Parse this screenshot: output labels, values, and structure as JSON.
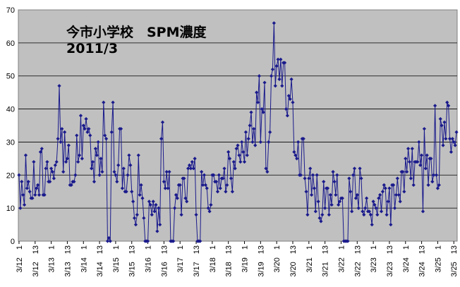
{
  "chart_data": {
    "type": "line",
    "title": "今市小学校　SPM濃度",
    "subtitle": "2011/3",
    "xlabel": "",
    "ylabel": "",
    "ylim": [
      0,
      70
    ],
    "yticks": [
      "0",
      "10",
      "20",
      "30",
      "40",
      "50",
      "60",
      "70"
    ],
    "grid": true,
    "legend": "none",
    "plot_background": "#c0c0c0",
    "line_color": "#1a1a8c",
    "marker": "diamond",
    "x_tick_labels": [
      "3/12　1",
      "3/12　13",
      "3/13　1",
      "3/13　13",
      "3/14　1",
      "3/14　13",
      "3/15　1",
      "3/15　13",
      "3/16　1",
      "3/16　13",
      "3/17　1",
      "3/17　13",
      "3/18　1",
      "3/18　13",
      "3/19　1",
      "3/19　13",
      "3/20　1",
      "3/20　13",
      "3/21　1",
      "3/21　13",
      "3/22　1",
      "3/22　13",
      "3/23　1",
      "3/23　13",
      "3/24　1",
      "3/24　13",
      "3/25　1",
      "3/25　13"
    ],
    "series": [
      {
        "name": "",
        "values": [
          20,
          10,
          18,
          14,
          11,
          26,
          16,
          18,
          15,
          13,
          13,
          24,
          14,
          16,
          17,
          14,
          27,
          28,
          14,
          14,
          22,
          24,
          18,
          18,
          22,
          21,
          19,
          23,
          24,
          31,
          47,
          30,
          34,
          21,
          33,
          24,
          25,
          29,
          17,
          17,
          18,
          18,
          20,
          32,
          24,
          26,
          38,
          25,
          35,
          34,
          37,
          33,
          34,
          32,
          22,
          24,
          18,
          28,
          26,
          30,
          20,
          25,
          21,
          42,
          32,
          31,
          0,
          1,
          0,
          33,
          42,
          21,
          20,
          18,
          23,
          34,
          34,
          16,
          22,
          15,
          15,
          20,
          26,
          23,
          15,
          12,
          7,
          5,
          8,
          26,
          14,
          17,
          13,
          7,
          0,
          0,
          0,
          12,
          11,
          8,
          12,
          9,
          11,
          3,
          10,
          5,
          31,
          36,
          18,
          16,
          21,
          16,
          21,
          0,
          0,
          0,
          10,
          14,
          13,
          17,
          17,
          8,
          19,
          19,
          13,
          12,
          22,
          23,
          22,
          24,
          22,
          25,
          8,
          0,
          0,
          0,
          21,
          17,
          20,
          17,
          16,
          10,
          9,
          11,
          20,
          20,
          18,
          18,
          15,
          20,
          16,
          19,
          19,
          22,
          15,
          17,
          27,
          25,
          19,
          15,
          24,
          22,
          28,
          29,
          26,
          24,
          30,
          27,
          24,
          33,
          26,
          31,
          35,
          39,
          30,
          34,
          29,
          45,
          42,
          50,
          30,
          40,
          39,
          48,
          22,
          21,
          30,
          33,
          50,
          52,
          66,
          47,
          53,
          55,
          49,
          55,
          47,
          54,
          54,
          40,
          38,
          44,
          43,
          49,
          42,
          27,
          26,
          25,
          30,
          20,
          20,
          31,
          31,
          19,
          15,
          8,
          19,
          22,
          14,
          20,
          16,
          9,
          20,
          12,
          7,
          6,
          8,
          18,
          10,
          16,
          16,
          8,
          14,
          11,
          21,
          18,
          14,
          20,
          11,
          12,
          13,
          13,
          0,
          0,
          0,
          0,
          19,
          15,
          9,
          20,
          22,
          13,
          14,
          10,
          22,
          19,
          9,
          8,
          10,
          13,
          9,
          9,
          8,
          5,
          12,
          11,
          10,
          8,
          13,
          14,
          9,
          15,
          17,
          16,
          8,
          12,
          16,
          5,
          17,
          17,
          10,
          14,
          19,
          14,
          12,
          21,
          21,
          15,
          25,
          21,
          28,
          24,
          19,
          28,
          17,
          24,
          24,
          24,
          30,
          23,
          26,
          9,
          34,
          22,
          26,
          17,
          25,
          25,
          18,
          20,
          41,
          20,
          16,
          17,
          37,
          35,
          29,
          36,
          31,
          42,
          41,
          31,
          27,
          31,
          30,
          29,
          33
        ]
      }
    ]
  }
}
